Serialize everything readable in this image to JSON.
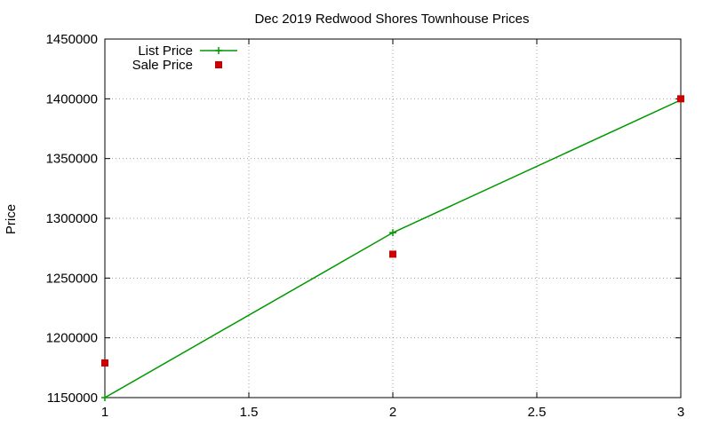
{
  "chart_data": {
    "type": "line",
    "title": "Dec 2019 Redwood Shores Townhouse Prices",
    "xlabel": "",
    "ylabel": "Price",
    "xlim": [
      1,
      3
    ],
    "ylim": [
      1150000,
      1450000
    ],
    "x_ticks": [
      1,
      1.5,
      2,
      2.5,
      3
    ],
    "x_tick_labels": [
      "1",
      "1.5",
      "2",
      "2.5",
      "3"
    ],
    "y_ticks": [
      1150000,
      1200000,
      1250000,
      1300000,
      1350000,
      1400000,
      1450000
    ],
    "y_tick_labels": [
      "1150000",
      "1200000",
      "1250000",
      "1300000",
      "1350000",
      "1400000",
      "1450000"
    ],
    "grid": true,
    "legend_position": "top-left",
    "series": [
      {
        "name": "List Price",
        "style": "linespoints",
        "marker": "plus",
        "color": "#009900",
        "x": [
          1,
          2,
          3
        ],
        "y": [
          1150000,
          1288000,
          1399000
        ]
      },
      {
        "name": "Sale Price",
        "style": "points",
        "marker": "square",
        "color": "#cc0000",
        "x": [
          1,
          2,
          3
        ],
        "y": [
          1179000,
          1270000,
          1400000
        ]
      }
    ]
  }
}
